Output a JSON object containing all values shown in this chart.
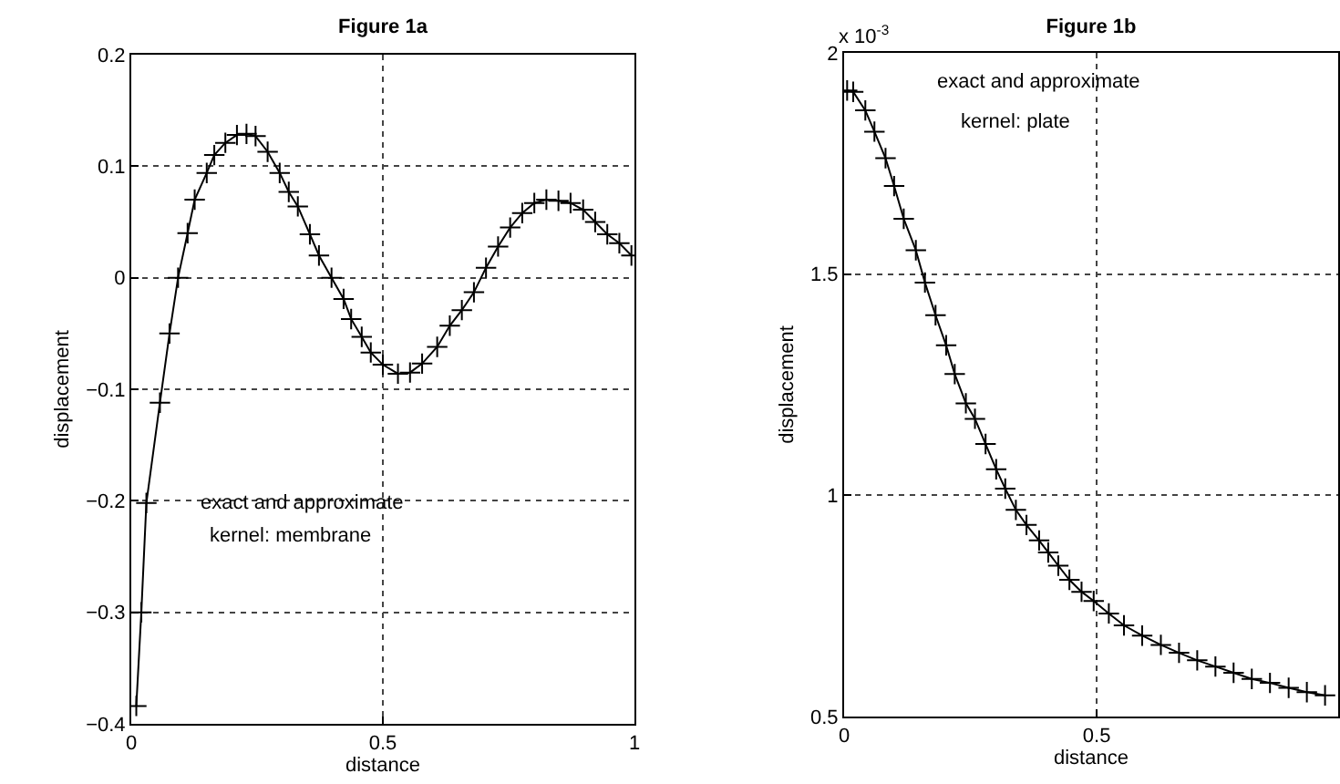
{
  "chart_data": [
    {
      "type": "line",
      "title": "Figure 1a",
      "xlabel": "distance",
      "ylabel": "displacement",
      "x": [
        0.01,
        0.02,
        0.03,
        0.057,
        0.076,
        0.093,
        0.112,
        0.126,
        0.15,
        0.165,
        0.187,
        0.21,
        0.229,
        0.247,
        0.271,
        0.295,
        0.313,
        0.331,
        0.355,
        0.373,
        0.398,
        0.422,
        0.437,
        0.458,
        0.476,
        0.5,
        0.53,
        0.554,
        0.578,
        0.608,
        0.633,
        0.657,
        0.681,
        0.705,
        0.729,
        0.753,
        0.777,
        0.801,
        0.825,
        0.849,
        0.873,
        0.898,
        0.922,
        0.946,
        0.97,
        0.994
      ],
      "series": [
        {
          "color": "#000000",
          "values": [
            -0.384,
            -0.3,
            -0.202,
            -0.112,
            -0.05,
            0.0,
            0.04,
            0.07,
            0.094,
            0.11,
            0.121,
            0.128,
            0.129,
            0.127,
            0.113,
            0.094,
            0.077,
            0.064,
            0.039,
            0.02,
            0.0,
            -0.019,
            -0.037,
            -0.053,
            -0.067,
            -0.078,
            -0.086,
            -0.085,
            -0.077,
            -0.062,
            -0.043,
            -0.029,
            -0.013,
            0.009,
            0.028,
            0.045,
            0.058,
            0.067,
            0.07,
            0.069,
            0.067,
            0.061,
            0.05,
            0.039,
            0.031,
            0.02
          ]
        }
      ],
      "xlim": [
        0,
        1
      ],
      "xticks": [
        0,
        0.5,
        1
      ],
      "ylim": [
        -0.4,
        0.2
      ],
      "yticks": [
        -0.4,
        -0.3,
        -0.2,
        -0.1,
        0,
        0.1,
        0.2
      ],
      "grid": true,
      "marker": "cross",
      "line_style": "solid",
      "annotations": [
        "exact and approximate",
        "kernel: membrane"
      ]
    },
    {
      "type": "line",
      "title": "Figure 1b",
      "xlabel": "distance",
      "ylabel": "displacement",
      "x": [
        0.006,
        0.018,
        0.042,
        0.06,
        0.082,
        0.099,
        0.118,
        0.142,
        0.16,
        0.181,
        0.202,
        0.219,
        0.241,
        0.259,
        0.28,
        0.301,
        0.319,
        0.34,
        0.361,
        0.386,
        0.404,
        0.424,
        0.446,
        0.47,
        0.494,
        0.524,
        0.554,
        0.59,
        0.627,
        0.663,
        0.699,
        0.735,
        0.771,
        0.807,
        0.843,
        0.88,
        0.916,
        0.952
      ],
      "series": [
        {
          "color": "#000000",
          "values": [
            1.915,
            1.912,
            1.87,
            1.822,
            1.762,
            1.699,
            1.625,
            1.554,
            1.481,
            1.407,
            1.339,
            1.274,
            1.208,
            1.173,
            1.116,
            1.059,
            1.015,
            0.967,
            0.933,
            0.898,
            0.871,
            0.841,
            0.809,
            0.782,
            0.761,
            0.733,
            0.706,
            0.683,
            0.662,
            0.644,
            0.627,
            0.613,
            0.599,
            0.585,
            0.576,
            0.565,
            0.555,
            0.548
          ]
        }
      ],
      "xlim": [
        0,
        0.978
      ],
      "xticks": [
        0,
        0.5
      ],
      "ylim": [
        0.5,
        2
      ],
      "yticks": [
        0.5,
        1,
        1.5,
        2
      ],
      "grid": true,
      "marker": "cross",
      "line_style": "solid",
      "annotations": [
        "x 10$^{-3}$",
        "exact and approximate",
        "kernel: plate"
      ]
    }
  ]
}
